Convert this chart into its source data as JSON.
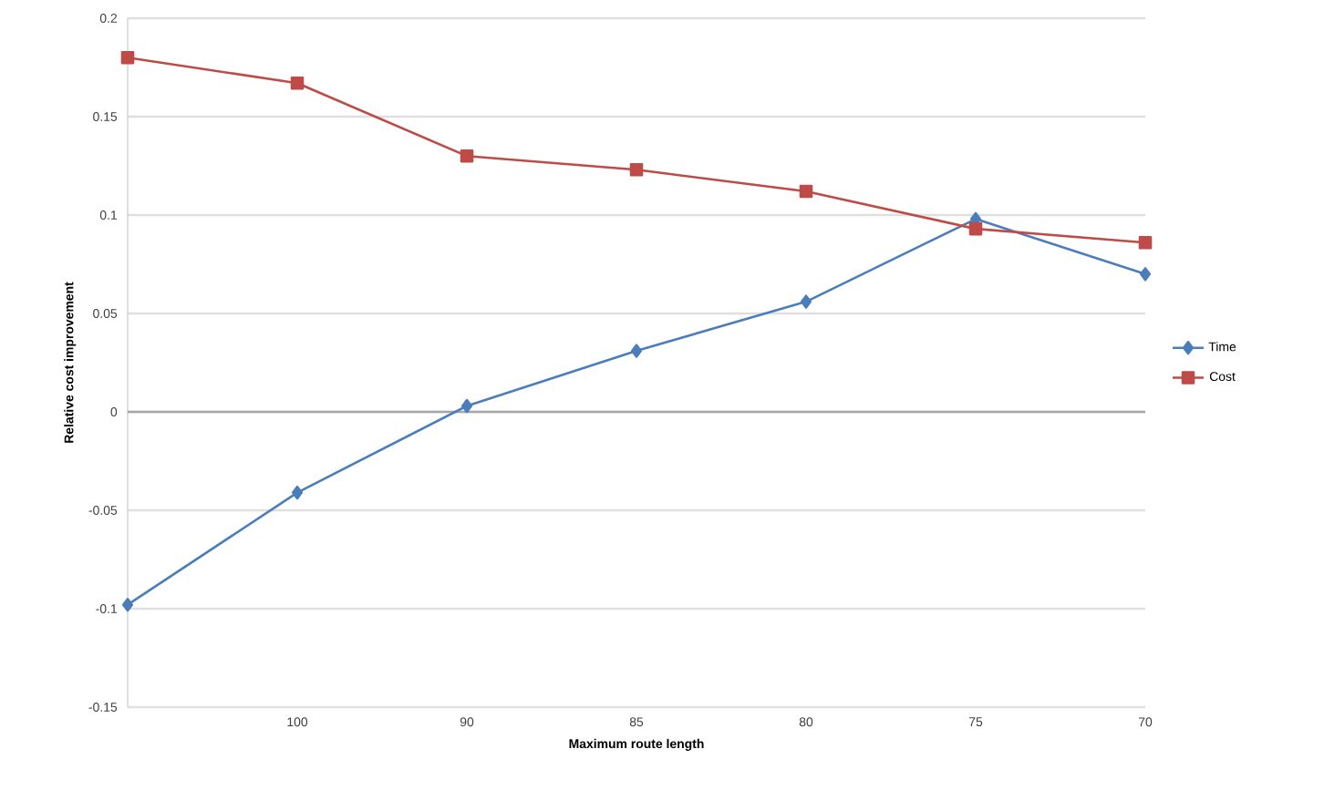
{
  "chart_data": {
    "type": "line",
    "xlabel": "Maximum route length",
    "ylabel": "Relative cost improvement",
    "categories": [
      null,
      "100",
      "90",
      "85",
      "80",
      "75",
      "70"
    ],
    "series": [
      {
        "name": "Time",
        "color": "#4a7ebb",
        "marker": "diamond",
        "values": [
          -0.098,
          -0.041,
          0.003,
          0.031,
          0.056,
          0.098,
          0.07
        ]
      },
      {
        "name": "Cost",
        "color": "#be4b48",
        "marker": "square",
        "values": [
          0.18,
          0.167,
          0.13,
          0.123,
          0.112,
          0.093,
          0.086
        ]
      }
    ],
    "ylim": [
      -0.15,
      0.2
    ],
    "yticks": [
      -0.15,
      -0.1,
      -0.05,
      0,
      0.05,
      0.1,
      0.15,
      0.2
    ],
    "grid": "y",
    "legend": "right"
  }
}
